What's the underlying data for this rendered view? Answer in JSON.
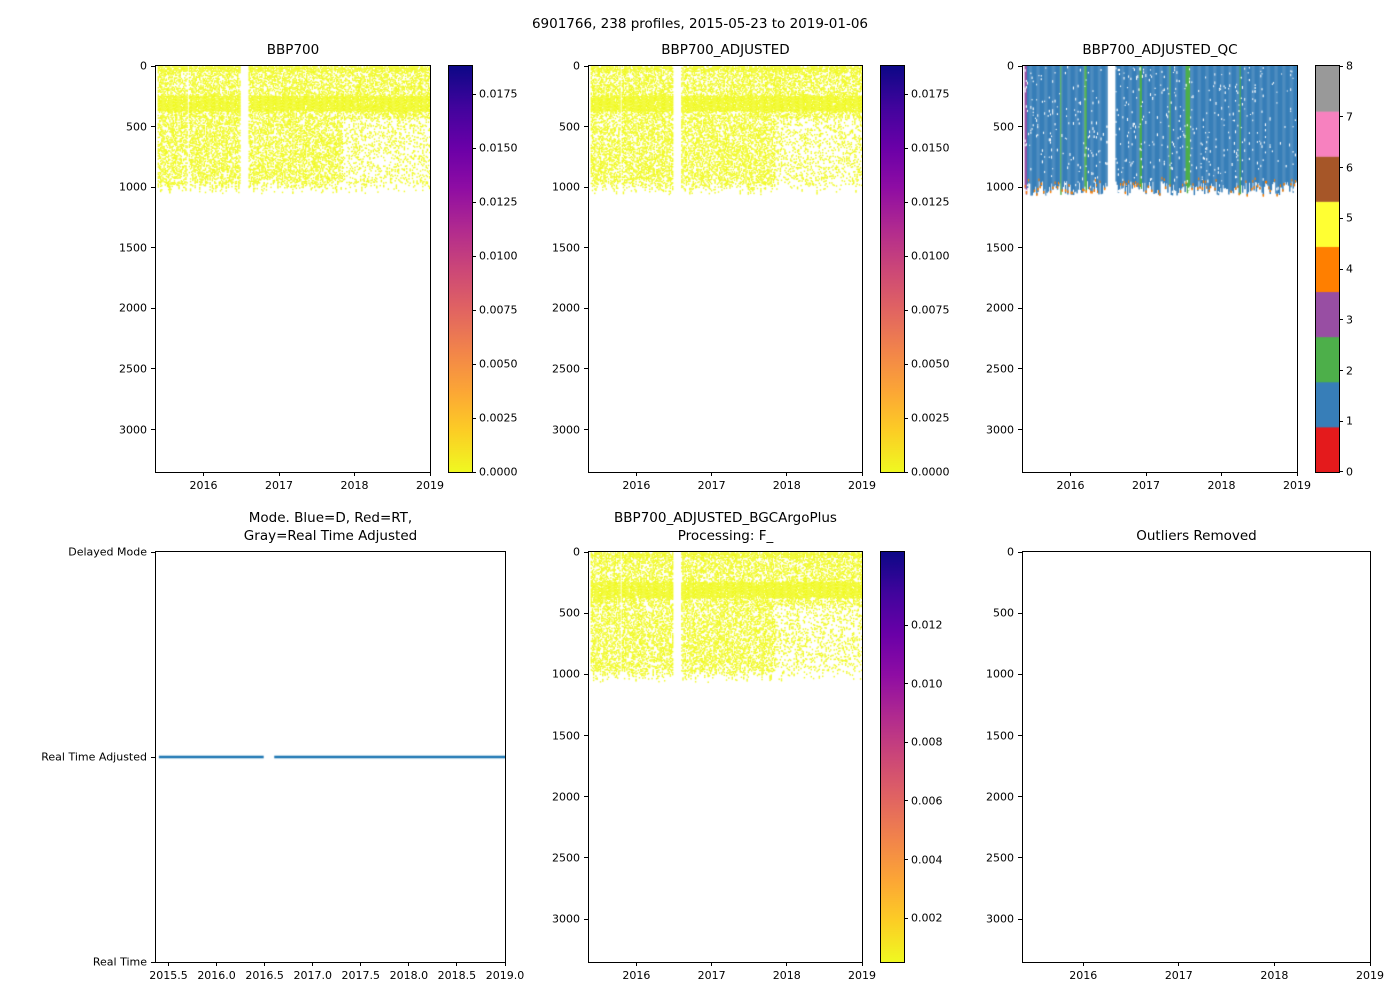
{
  "suptitle": "6901766, 238 profiles, 2015-05-23 to 2019-01-06",
  "figure": {
    "background": "#ffffff",
    "text_color": "#000000",
    "axis_color": "#000000"
  },
  "colors": {
    "plasma_r_stops_top_to_bottom": [
      "#0d0887",
      "#41049d",
      "#6a00a8",
      "#8f0da4",
      "#b12a90",
      "#cc4778",
      "#e16462",
      "#f2844b",
      "#fca636",
      "#fcce25",
      "#f0f921"
    ],
    "data_yellow": "#f0f921",
    "mode_line_blue": "#1f77b4",
    "qc_palette_0_to_8": [
      "#e41a1c",
      "#377eb8",
      "#4daf4a",
      "#984ea3",
      "#ff7f00",
      "#ffff33",
      "#a65628",
      "#f781bf",
      "#999999"
    ]
  },
  "chart_data": [
    {
      "id": "bbp700",
      "type": "heatmap",
      "title": "BBP700",
      "x_axis": {
        "range": [
          2015.37,
          2019.0
        ],
        "ticks": [
          2016,
          2017,
          2018,
          2019
        ],
        "tick_labels": [
          "2016",
          "2017",
          "2018",
          "2019"
        ]
      },
      "y_axis": {
        "range": [
          0,
          3350
        ],
        "ticks": [
          0,
          500,
          1000,
          1500,
          2000,
          2500,
          3000
        ],
        "inverted_depth": true
      },
      "profiles": {
        "count": 238,
        "x_start": 2015.4,
        "x_end": 2019.01,
        "gaps": [
          [
            2016.49,
            2016.6
          ],
          [
            2015.785,
            2015.81
          ]
        ]
      },
      "pattern": {
        "depth_max_range": [
          960,
          1060
        ],
        "dense_band_depth": [
          240,
          370
        ],
        "surface_dense_depth": 40,
        "sparse_region": {
          "x_from": 2017.85,
          "depth_from": 430,
          "factor": 0.45
        },
        "base_density": 0.52,
        "point_color": "#f0f921",
        "seed": 11
      },
      "observed_value_range": [
        0.0,
        0.001
      ],
      "colorbar": {
        "style": "continuous",
        "colormap": "plasma_r",
        "vmin": 0.0,
        "vmax": 0.0188,
        "ticks": [
          0.0,
          0.0025,
          0.005,
          0.0075,
          0.01,
          0.0125,
          0.015,
          0.0175
        ],
        "tick_labels": [
          "0.0000",
          "0.0025",
          "0.0050",
          "0.0075",
          "0.0100",
          "0.0125",
          "0.0150",
          "0.0175"
        ]
      }
    },
    {
      "id": "bbp700_adjusted",
      "type": "heatmap",
      "title": "BBP700_ADJUSTED",
      "x_axis": {
        "range": [
          2015.37,
          2019.0
        ],
        "ticks": [
          2016,
          2017,
          2018,
          2019
        ],
        "tick_labels": [
          "2016",
          "2017",
          "2018",
          "2019"
        ]
      },
      "y_axis": {
        "range": [
          0,
          3350
        ],
        "ticks": [
          0,
          500,
          1000,
          1500,
          2000,
          2500,
          3000
        ],
        "inverted_depth": true
      },
      "profiles": {
        "count": 238,
        "x_start": 2015.4,
        "x_end": 2019.01,
        "gaps": [
          [
            2016.49,
            2016.6
          ],
          [
            2015.785,
            2015.81
          ]
        ]
      },
      "pattern": {
        "depth_max_range": [
          960,
          1060
        ],
        "dense_band_depth": [
          240,
          370
        ],
        "surface_dense_depth": 40,
        "sparse_region": {
          "x_from": 2017.85,
          "depth_from": 430,
          "factor": 0.45
        },
        "base_density": 0.52,
        "point_color": "#f0f921",
        "seed": 23
      },
      "observed_value_range": [
        0.0,
        0.001
      ],
      "colorbar": {
        "style": "continuous",
        "colormap": "plasma_r",
        "vmin": 0.0,
        "vmax": 0.0188,
        "ticks": [
          0.0,
          0.0025,
          0.005,
          0.0075,
          0.01,
          0.0125,
          0.015,
          0.0175
        ],
        "tick_labels": [
          "0.0000",
          "0.0025",
          "0.0050",
          "0.0075",
          "0.0100",
          "0.0125",
          "0.0150",
          "0.0175"
        ]
      }
    },
    {
      "id": "bbp700_adjusted_qc",
      "type": "heatmap",
      "title": "BBP700_ADJUSTED_QC",
      "x_axis": {
        "range": [
          2015.37,
          2019.0
        ],
        "ticks": [
          2016,
          2017,
          2018,
          2019
        ],
        "tick_labels": [
          "2016",
          "2017",
          "2018",
          "2019"
        ]
      },
      "y_axis": {
        "range": [
          0,
          3350
        ],
        "ticks": [
          0,
          500,
          1000,
          1500,
          2000,
          2500,
          3000
        ],
        "inverted_depth": true
      },
      "profiles": {
        "count": 238,
        "x_start": 2015.4,
        "x_end": 2019.01,
        "gaps": [
          [
            2016.49,
            2016.6
          ]
        ]
      },
      "qc": {
        "dominant_flag": 1,
        "flag_colors_0_to_8": [
          "#e41a1c",
          "#377eb8",
          "#4daf4a",
          "#984ea3",
          "#ff7f00",
          "#ffff33",
          "#a65628",
          "#f781bf",
          "#999999"
        ],
        "green_flag2_x": [
          2015.87,
          2016.2,
          2016.93,
          2017.32,
          2017.54,
          2017.57,
          2018.25
        ],
        "purple_flag3_x": [
          2015.4,
          2015.42
        ],
        "orange_flag4_near_bottom": true,
        "depth_max_range": [
          950,
          1070
        ],
        "seed": 37
      },
      "colorbar": {
        "style": "discrete",
        "ticks": [
          0,
          1,
          2,
          3,
          4,
          5,
          6,
          7,
          8
        ],
        "tick_labels": [
          "0",
          "1",
          "2",
          "3",
          "4",
          "5",
          "6",
          "7",
          "8"
        ],
        "colors_bottom_to_top": [
          "#e41a1c",
          "#377eb8",
          "#4daf4a",
          "#984ea3",
          "#ff7f00",
          "#ffff33",
          "#a65628",
          "#f781bf",
          "#999999"
        ]
      }
    },
    {
      "id": "mode",
      "type": "line",
      "title": "Mode. Blue=D, Red=RT,\nGray=Real Time Adjusted",
      "x_axis": {
        "range": [
          2015.37,
          2019.0
        ],
        "ticks": [
          2015.5,
          2016.0,
          2016.5,
          2017.0,
          2017.5,
          2018.0,
          2018.5,
          2019.0
        ],
        "tick_labels": [
          "2015.5",
          "2016.0",
          "2016.5",
          "2017.0",
          "2017.5",
          "2018.0",
          "2018.5",
          "2019.0"
        ]
      },
      "y_axis": {
        "categories_bottom_to_top": [
          "Real Time",
          "Real Time Adjusted",
          "Delayed Mode"
        ]
      },
      "series": [
        {
          "name": "mode",
          "color": "#1f77b4",
          "value": "Real Time Adjusted",
          "segments_x": [
            [
              2015.4,
              2016.49
            ],
            [
              2016.6,
              2019.01
            ]
          ]
        }
      ]
    },
    {
      "id": "bbp700_adjusted_bgcargoplus",
      "type": "heatmap",
      "title": "BBP700_ADJUSTED_BGCArgoPlus\nProcessing: F_",
      "x_axis": {
        "range": [
          2015.37,
          2019.0
        ],
        "ticks": [
          2016,
          2017,
          2018,
          2019
        ],
        "tick_labels": [
          "2016",
          "2017",
          "2018",
          "2019"
        ]
      },
      "y_axis": {
        "range": [
          0,
          3350
        ],
        "ticks": [
          0,
          500,
          1000,
          1500,
          2000,
          2500,
          3000
        ],
        "inverted_depth": true
      },
      "profiles": {
        "count": 238,
        "x_start": 2015.4,
        "x_end": 2019.01,
        "gaps": [
          [
            2016.49,
            2016.6
          ],
          [
            2015.785,
            2015.81
          ]
        ]
      },
      "pattern": {
        "depth_max_range": [
          960,
          1060
        ],
        "dense_band_depth": [
          240,
          370
        ],
        "surface_dense_depth": 40,
        "sparse_region": {
          "x_from": 2017.85,
          "depth_from": 430,
          "factor": 0.45
        },
        "base_density": 0.52,
        "point_color": "#f0f921",
        "seed": 51
      },
      "observed_value_range": [
        0.0005,
        0.0015
      ],
      "colorbar": {
        "style": "continuous",
        "colormap": "plasma_r",
        "vmin": 0.0005,
        "vmax": 0.0145,
        "ticks": [
          0.002,
          0.004,
          0.006,
          0.008,
          0.01,
          0.012
        ],
        "tick_labels": [
          "0.002",
          "0.004",
          "0.006",
          "0.008",
          "0.010",
          "0.012"
        ]
      }
    },
    {
      "id": "outliers_removed",
      "type": "heatmap",
      "title": "Outliers Removed",
      "empty": true,
      "x_axis": {
        "range": [
          2015.37,
          2019.0
        ],
        "ticks": [
          2016,
          2017,
          2018,
          2019
        ],
        "tick_labels": [
          "2016",
          "2017",
          "2018",
          "2019"
        ]
      },
      "y_axis": {
        "range": [
          0,
          3350
        ],
        "ticks": [
          0,
          500,
          1000,
          1500,
          2000,
          2500,
          3000
        ],
        "inverted_depth": true
      }
    }
  ]
}
